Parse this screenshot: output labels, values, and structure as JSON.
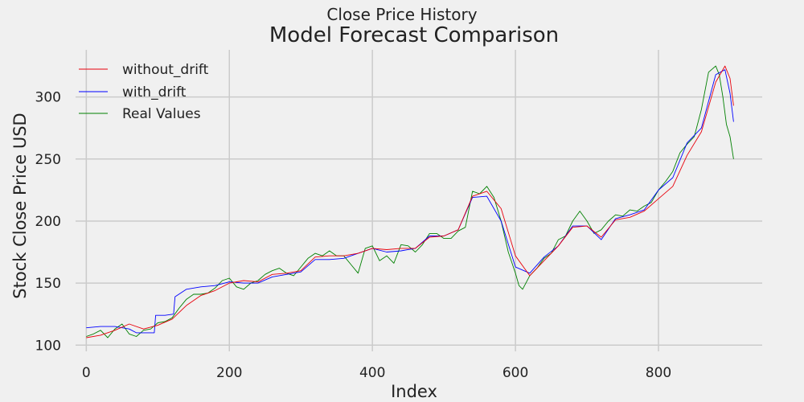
{
  "chart_data": {
    "type": "line",
    "suptitle": "Close Price History",
    "title": "Model Forecast Comparison",
    "xlabel": "Index",
    "ylabel": "Stock Close Price USD",
    "xlim": [
      -15,
      945
    ],
    "ylim": [
      95,
      338
    ],
    "xticks": [
      0,
      200,
      400,
      600,
      800
    ],
    "yticks": [
      100,
      150,
      200,
      250,
      300
    ],
    "grid": true,
    "legend_position": "top-left",
    "series": [
      {
        "name": "without_drift",
        "color": "#e8000b",
        "points": [
          [
            0,
            106
          ],
          [
            20,
            108
          ],
          [
            40,
            112
          ],
          [
            60,
            117
          ],
          [
            80,
            113
          ],
          [
            100,
            116
          ],
          [
            120,
            121
          ],
          [
            140,
            132
          ],
          [
            160,
            140
          ],
          [
            180,
            144
          ],
          [
            200,
            150
          ],
          [
            220,
            152
          ],
          [
            240,
            151
          ],
          [
            260,
            157
          ],
          [
            280,
            158
          ],
          [
            300,
            160
          ],
          [
            320,
            171
          ],
          [
            340,
            172
          ],
          [
            360,
            172
          ],
          [
            380,
            174
          ],
          [
            400,
            178
          ],
          [
            420,
            177
          ],
          [
            440,
            178
          ],
          [
            460,
            178
          ],
          [
            480,
            187
          ],
          [
            500,
            188
          ],
          [
            520,
            193
          ],
          [
            540,
            220
          ],
          [
            560,
            224
          ],
          [
            580,
            210
          ],
          [
            600,
            172
          ],
          [
            620,
            156
          ],
          [
            640,
            168
          ],
          [
            660,
            180
          ],
          [
            680,
            195
          ],
          [
            700,
            196
          ],
          [
            720,
            187
          ],
          [
            740,
            201
          ],
          [
            760,
            203
          ],
          [
            780,
            208
          ],
          [
            800,
            218
          ],
          [
            820,
            228
          ],
          [
            840,
            253
          ],
          [
            860,
            272
          ],
          [
            870,
            292
          ],
          [
            880,
            312
          ],
          [
            893,
            325
          ],
          [
            900,
            315
          ],
          [
            905,
            293
          ]
        ]
      },
      {
        "name": "with_drift",
        "color": "#0000ff",
        "points": [
          [
            0,
            114
          ],
          [
            20,
            115
          ],
          [
            40,
            115
          ],
          [
            60,
            113
          ],
          [
            70,
            110
          ],
          [
            80,
            110
          ],
          [
            95,
            110
          ],
          [
            97,
            124
          ],
          [
            110,
            124
          ],
          [
            122,
            125
          ],
          [
            124,
            139
          ],
          [
            140,
            145
          ],
          [
            160,
            147
          ],
          [
            180,
            148
          ],
          [
            200,
            151
          ],
          [
            220,
            150
          ],
          [
            240,
            150
          ],
          [
            260,
            155
          ],
          [
            280,
            157
          ],
          [
            300,
            159
          ],
          [
            320,
            169
          ],
          [
            340,
            169
          ],
          [
            360,
            170
          ],
          [
            380,
            174
          ],
          [
            400,
            178
          ],
          [
            420,
            175
          ],
          [
            440,
            176
          ],
          [
            460,
            178
          ],
          [
            480,
            188
          ],
          [
            500,
            188
          ],
          [
            520,
            193
          ],
          [
            540,
            219
          ],
          [
            560,
            220
          ],
          [
            580,
            200
          ],
          [
            600,
            163
          ],
          [
            620,
            158
          ],
          [
            640,
            171
          ],
          [
            660,
            180
          ],
          [
            680,
            196
          ],
          [
            700,
            196
          ],
          [
            720,
            185
          ],
          [
            740,
            202
          ],
          [
            760,
            205
          ],
          [
            780,
            209
          ],
          [
            800,
            225
          ],
          [
            820,
            235
          ],
          [
            840,
            263
          ],
          [
            860,
            275
          ],
          [
            880,
            318
          ],
          [
            893,
            322
          ],
          [
            900,
            303
          ],
          [
            905,
            280
          ]
        ]
      },
      {
        "name": "Real Values",
        "color": "#008000",
        "points": [
          [
            0,
            107
          ],
          [
            10,
            109
          ],
          [
            20,
            112
          ],
          [
            30,
            106
          ],
          [
            40,
            113
          ],
          [
            50,
            117
          ],
          [
            60,
            109
          ],
          [
            70,
            107
          ],
          [
            80,
            112
          ],
          [
            90,
            113
          ],
          [
            100,
            118
          ],
          [
            110,
            119
          ],
          [
            120,
            122
          ],
          [
            130,
            130
          ],
          [
            140,
            137
          ],
          [
            150,
            141
          ],
          [
            160,
            141
          ],
          [
            170,
            142
          ],
          [
            180,
            146
          ],
          [
            190,
            152
          ],
          [
            200,
            154
          ],
          [
            210,
            147
          ],
          [
            220,
            145
          ],
          [
            230,
            150
          ],
          [
            240,
            152
          ],
          [
            250,
            157
          ],
          [
            260,
            160
          ],
          [
            270,
            162
          ],
          [
            280,
            158
          ],
          [
            290,
            156
          ],
          [
            300,
            163
          ],
          [
            310,
            170
          ],
          [
            320,
            174
          ],
          [
            330,
            172
          ],
          [
            340,
            176
          ],
          [
            350,
            172
          ],
          [
            360,
            172
          ],
          [
            370,
            165
          ],
          [
            380,
            158
          ],
          [
            390,
            178
          ],
          [
            400,
            180
          ],
          [
            410,
            168
          ],
          [
            420,
            172
          ],
          [
            430,
            166
          ],
          [
            440,
            181
          ],
          [
            450,
            180
          ],
          [
            460,
            175
          ],
          [
            470,
            181
          ],
          [
            480,
            190
          ],
          [
            490,
            190
          ],
          [
            500,
            186
          ],
          [
            510,
            186
          ],
          [
            520,
            192
          ],
          [
            530,
            195
          ],
          [
            540,
            224
          ],
          [
            550,
            222
          ],
          [
            560,
            228
          ],
          [
            570,
            219
          ],
          [
            580,
            200
          ],
          [
            590,
            175
          ],
          [
            600,
            158
          ],
          [
            605,
            148
          ],
          [
            610,
            145
          ],
          [
            620,
            156
          ],
          [
            630,
            162
          ],
          [
            640,
            170
          ],
          [
            650,
            174
          ],
          [
            660,
            185
          ],
          [
            670,
            188
          ],
          [
            680,
            200
          ],
          [
            690,
            208
          ],
          [
            700,
            200
          ],
          [
            710,
            190
          ],
          [
            720,
            193
          ],
          [
            730,
            200
          ],
          [
            740,
            205
          ],
          [
            750,
            204
          ],
          [
            760,
            209
          ],
          [
            770,
            208
          ],
          [
            780,
            212
          ],
          [
            790,
            215
          ],
          [
            800,
            225
          ],
          [
            810,
            232
          ],
          [
            820,
            240
          ],
          [
            830,
            255
          ],
          [
            840,
            262
          ],
          [
            850,
            268
          ],
          [
            860,
            290
          ],
          [
            870,
            320
          ],
          [
            880,
            325
          ],
          [
            885,
            318
          ],
          [
            890,
            300
          ],
          [
            895,
            278
          ],
          [
            900,
            268
          ],
          [
            905,
            250
          ]
        ]
      }
    ]
  }
}
